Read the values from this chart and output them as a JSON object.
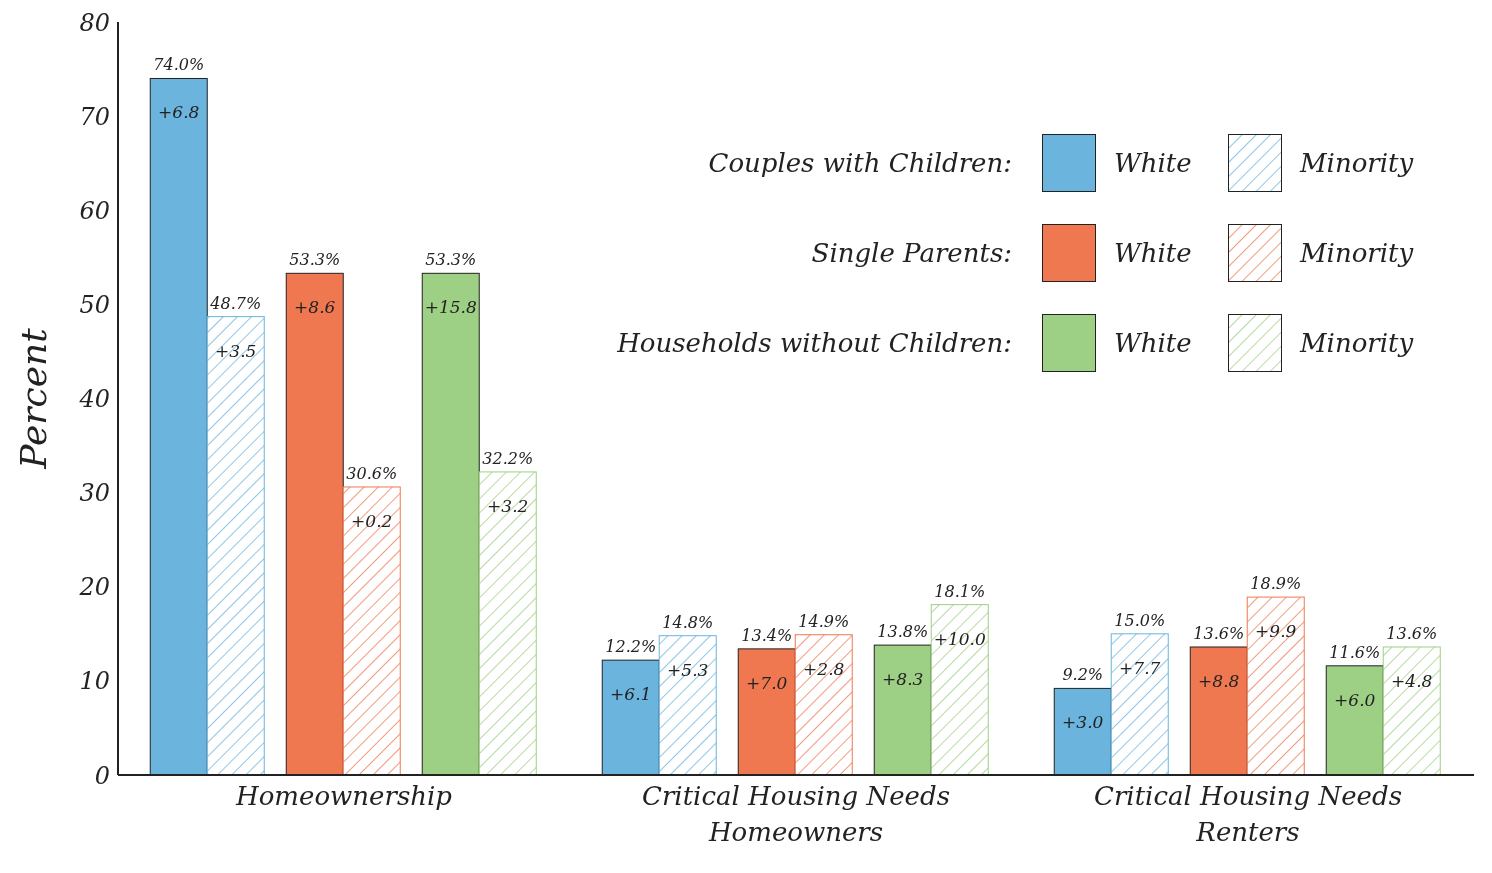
{
  "chart_data": {
    "type": "bar",
    "ylabel": "Percent",
    "categories": [
      "Homeownership",
      "Critical Housing Needs\nHomeowners",
      "Critical Housing Needs\nRenters"
    ],
    "series": [
      {
        "name": "White",
        "color": "#6ab4dd",
        "values": [
          74.0,
          12.2,
          9.2
        ],
        "value_labels": [
          "74.0%",
          "12.2%",
          "9.2%"
        ]
      },
      {
        "name": "Minority",
        "color": "#6ab4dd",
        "values": [
          48.7,
          14.8,
          15.0
        ],
        "value_labels": [
          "48.7%",
          "14.8%",
          "15.0%"
        ]
      },
      {
        "name": "White",
        "color": "#f07850",
        "values": [
          53.3,
          13.4,
          13.6
        ],
        "value_labels": [
          "53.3%",
          "13.4%",
          "13.6%"
        ]
      },
      {
        "name": "Minority",
        "color": "#f07850",
        "values": [
          30.6,
          14.9,
          18.9
        ],
        "value_labels": [
          "30.6%",
          "14.9%",
          "18.9%"
        ]
      },
      {
        "name": "White",
        "color": "#9dcf85",
        "values": [
          53.3,
          13.8,
          11.6
        ],
        "value_labels": [
          "53.3%",
          "13.8%",
          "11.6%"
        ]
      },
      {
        "name": "Minority",
        "color": "#9dcf85",
        "values": [
          32.2,
          18.1,
          13.6
        ],
        "value_labels": [
          "32.2%",
          "18.1%",
          "13.6%"
        ]
      }
    ],
    "ylim": [
      0,
      80
    ],
    "yticks": [
      0,
      10,
      20,
      30,
      40,
      50,
      60,
      70,
      80
    ],
    "grid": false,
    "legend": "top right",
    "annotations": [
      "Couples with Children:",
      "Single Parents:",
      "Households without Children:",
      "+6.8",
      "+3.5",
      "+8.6",
      "+0.2",
      "+15.8",
      "+3.2",
      "+6.1",
      "+5.3",
      "+7.0",
      "+2.8",
      "+8.3",
      "+10.0",
      "+3.0",
      "+7.7",
      "+8.8",
      "+9.9",
      "+6.0",
      "+4.8"
    ]
  }
}
